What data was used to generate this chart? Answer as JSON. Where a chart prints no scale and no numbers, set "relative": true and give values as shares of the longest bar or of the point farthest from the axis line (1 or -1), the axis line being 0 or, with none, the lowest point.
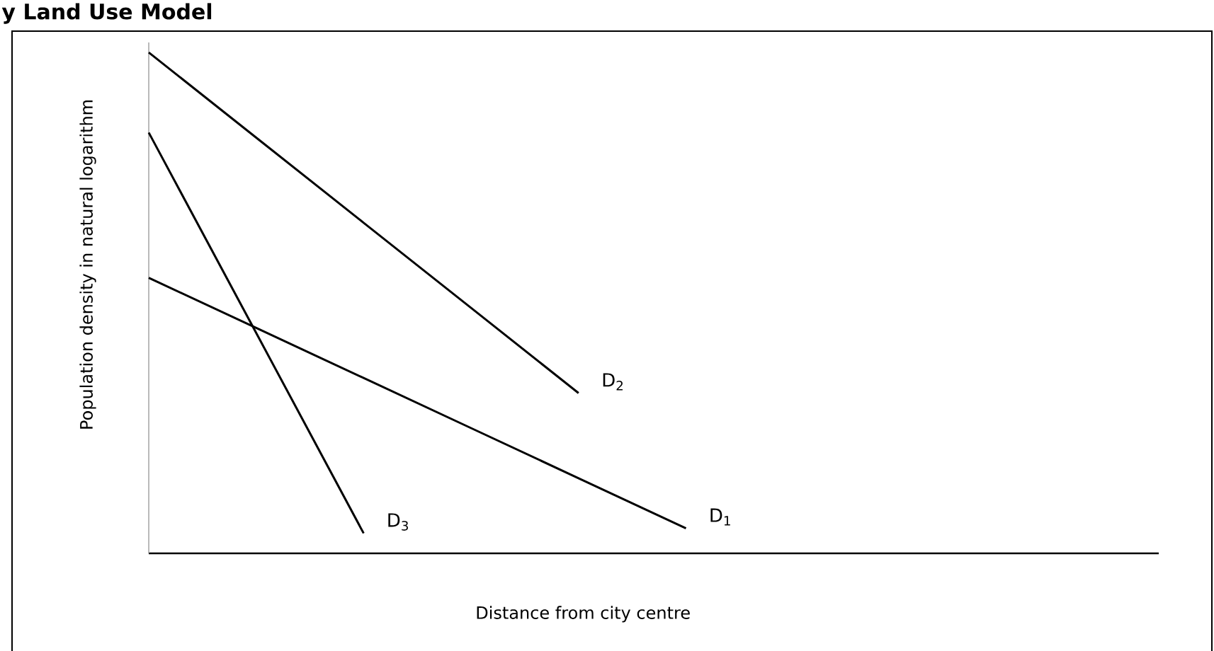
{
  "chart_data": {
    "type": "line",
    "title": "y Land Use Model",
    "xlabel": "Distance from city centre",
    "ylabel": "Population density in natural logarithm",
    "relative": true,
    "tick_labels": false,
    "categories": [
      null,
      null,
      null,
      null,
      null,
      null
    ],
    "series": [
      {
        "name": "D$_{1}$",
        "color": "#000000",
        "values": [
          0.55,
          0.45,
          0.35,
          0.25,
          0.15,
          0.05
        ]
      },
      {
        "name": "D$_{2}$",
        "color": "#000000",
        "values": [
          1,
          0.83,
          0.66,
          0.49,
          0.32,
          null
        ]
      },
      {
        "name": "D$_{3}$",
        "color": "#000000",
        "values": [
          0.84,
          0.44,
          0.04,
          null,
          null,
          null
        ]
      }
    ]
  }
}
